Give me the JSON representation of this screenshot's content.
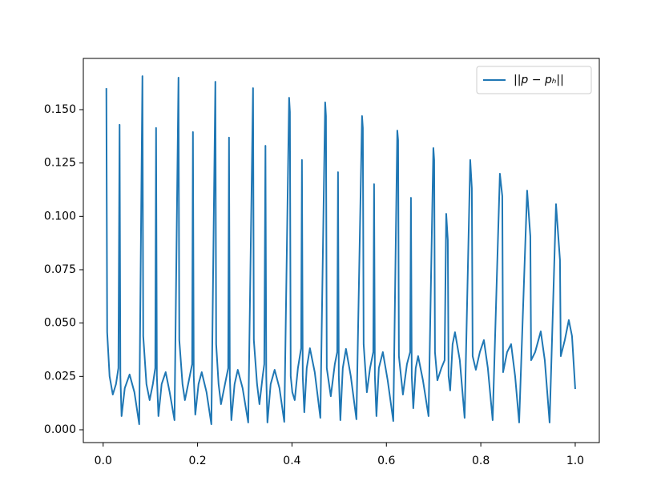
{
  "chart_data": {
    "type": "line",
    "x": [
      0.0068,
      0.0085,
      0.0136,
      0.0204,
      0.0272,
      0.0323,
      0.0348,
      0.0365,
      0.039,
      0.0458,
      0.056,
      0.0662,
      0.0764,
      0.0832,
      0.0849,
      0.0917,
      0.0985,
      0.1053,
      0.1104,
      0.1121,
      0.1138,
      0.1171,
      0.1239,
      0.1324,
      0.1409,
      0.1511,
      0.1596,
      0.1613,
      0.1681,
      0.1732,
      0.1817,
      0.1885,
      0.1902,
      0.1919,
      0.1952,
      0.202,
      0.2088,
      0.219,
      0.2292,
      0.2377,
      0.2394,
      0.2445,
      0.2496,
      0.2581,
      0.2649,
      0.2666,
      0.2683,
      0.2716,
      0.2784,
      0.2852,
      0.2954,
      0.3073,
      0.3175,
      0.3192,
      0.326,
      0.3311,
      0.3379,
      0.3413,
      0.3438,
      0.3455,
      0.348,
      0.3548,
      0.3633,
      0.3735,
      0.3837,
      0.3939,
      0.3956,
      0.3973,
      0.4007,
      0.4058,
      0.4126,
      0.4194,
      0.4211,
      0.4228,
      0.4261,
      0.4312,
      0.438,
      0.4482,
      0.4601,
      0.4703,
      0.472,
      0.4737,
      0.4822,
      0.4907,
      0.4958,
      0.4975,
      0.4992,
      0.5025,
      0.5076,
      0.5144,
      0.5246,
      0.5365,
      0.5484,
      0.5501,
      0.5518,
      0.5586,
      0.5654,
      0.5722,
      0.5739,
      0.5756,
      0.5789,
      0.584,
      0.5925,
      0.6027,
      0.6146,
      0.6231,
      0.6248,
      0.6265,
      0.635,
      0.6435,
      0.6503,
      0.652,
      0.6537,
      0.657,
      0.6621,
      0.6672,
      0.6774,
      0.6893,
      0.6995,
      0.7012,
      0.7029,
      0.708,
      0.7165,
      0.7233,
      0.7267,
      0.7301,
      0.7317,
      0.7351,
      0.7402,
      0.7453,
      0.7555,
      0.7657,
      0.7776,
      0.781,
      0.7827,
      0.7895,
      0.798,
      0.8065,
      0.8149,
      0.8251,
      0.8404,
      0.8455,
      0.8472,
      0.8557,
      0.8642,
      0.8727,
      0.8812,
      0.8981,
      0.9049,
      0.9066,
      0.9151,
      0.927,
      0.9355,
      0.9457,
      0.9593,
      0.9677,
      0.9694,
      0.9779,
      0.9864,
      0.9932,
      1.0
    ],
    "series": [
      {
        "name": "||p − pₕ||",
        "color": "#1f77b4",
        "values": [
          0.1601,
          0.0457,
          0.0251,
          0.0165,
          0.0214,
          0.0289,
          0.1429,
          0.0251,
          0.0064,
          0.0195,
          0.0259,
          0.0176,
          0.0026,
          0.1657,
          0.0439,
          0.0214,
          0.0139,
          0.0214,
          0.0289,
          0.1414,
          0.0251,
          0.0064,
          0.0214,
          0.027,
          0.0176,
          0.0045,
          0.165,
          0.042,
          0.0214,
          0.0139,
          0.0232,
          0.0307,
          0.1395,
          0.0251,
          0.0071,
          0.0214,
          0.027,
          0.0176,
          0.0026,
          0.1631,
          0.0401,
          0.0214,
          0.012,
          0.0214,
          0.0289,
          0.1369,
          0.0251,
          0.0045,
          0.0214,
          0.0281,
          0.0195,
          0.0034,
          0.1601,
          0.042,
          0.0214,
          0.012,
          0.0251,
          0.0307,
          0.1331,
          0.0251,
          0.0034,
          0.0214,
          0.0281,
          0.0195,
          0.0037,
          0.1556,
          0.1489,
          0.0251,
          0.0176,
          0.0139,
          0.0289,
          0.0382,
          0.1264,
          0.0251,
          0.0082,
          0.0289,
          0.0382,
          0.027,
          0.0056,
          0.1534,
          0.147,
          0.0289,
          0.0157,
          0.0307,
          0.0364,
          0.1207,
          0.0251,
          0.0045,
          0.0289,
          0.0379,
          0.0251,
          0.0049,
          0.147,
          0.1414,
          0.0401,
          0.0176,
          0.0289,
          0.0364,
          0.1151,
          0.0251,
          0.0064,
          0.0289,
          0.0364,
          0.0232,
          0.0041,
          0.1402,
          0.1357,
          0.0345,
          0.0165,
          0.0307,
          0.0364,
          0.1087,
          0.0251,
          0.0101,
          0.0289,
          0.0345,
          0.0232,
          0.0064,
          0.132,
          0.1264,
          0.0364,
          0.0232,
          0.0289,
          0.0326,
          0.1012,
          0.0889,
          0.0251,
          0.0184,
          0.0401,
          0.0457,
          0.0326,
          0.0056,
          0.1264,
          0.1132,
          0.0345,
          0.0281,
          0.0364,
          0.042,
          0.0289,
          0.0045,
          0.12,
          0.1095,
          0.027,
          0.0364,
          0.0401,
          0.0251,
          0.0034,
          0.1121,
          0.0907,
          0.0326,
          0.0364,
          0.0461,
          0.0326,
          0.0034,
          0.1057,
          0.0795,
          0.0345,
          0.042,
          0.0514,
          0.0439,
          0.0191
        ]
      }
    ],
    "xlim": [
      -0.042,
      1.051
    ],
    "xticks": [
      {
        "value": 0,
        "label": "0.0"
      },
      0.2,
      0.4,
      0.6,
      0.8,
      {
        "value": 1,
        "label": "1.0"
      }
    ],
    "ylim": [
      -0.006,
      0.174
    ],
    "yticks": [
      {
        "value": 0,
        "label": "0.000"
      },
      0.025,
      {
        "value": 0.05,
        "label": "0.050"
      },
      0.075,
      {
        "value": 0.1,
        "label": "0.100"
      },
      0.125,
      {
        "value": 0.15,
        "label": "0.150"
      }
    ],
    "legend": "upper right"
  }
}
